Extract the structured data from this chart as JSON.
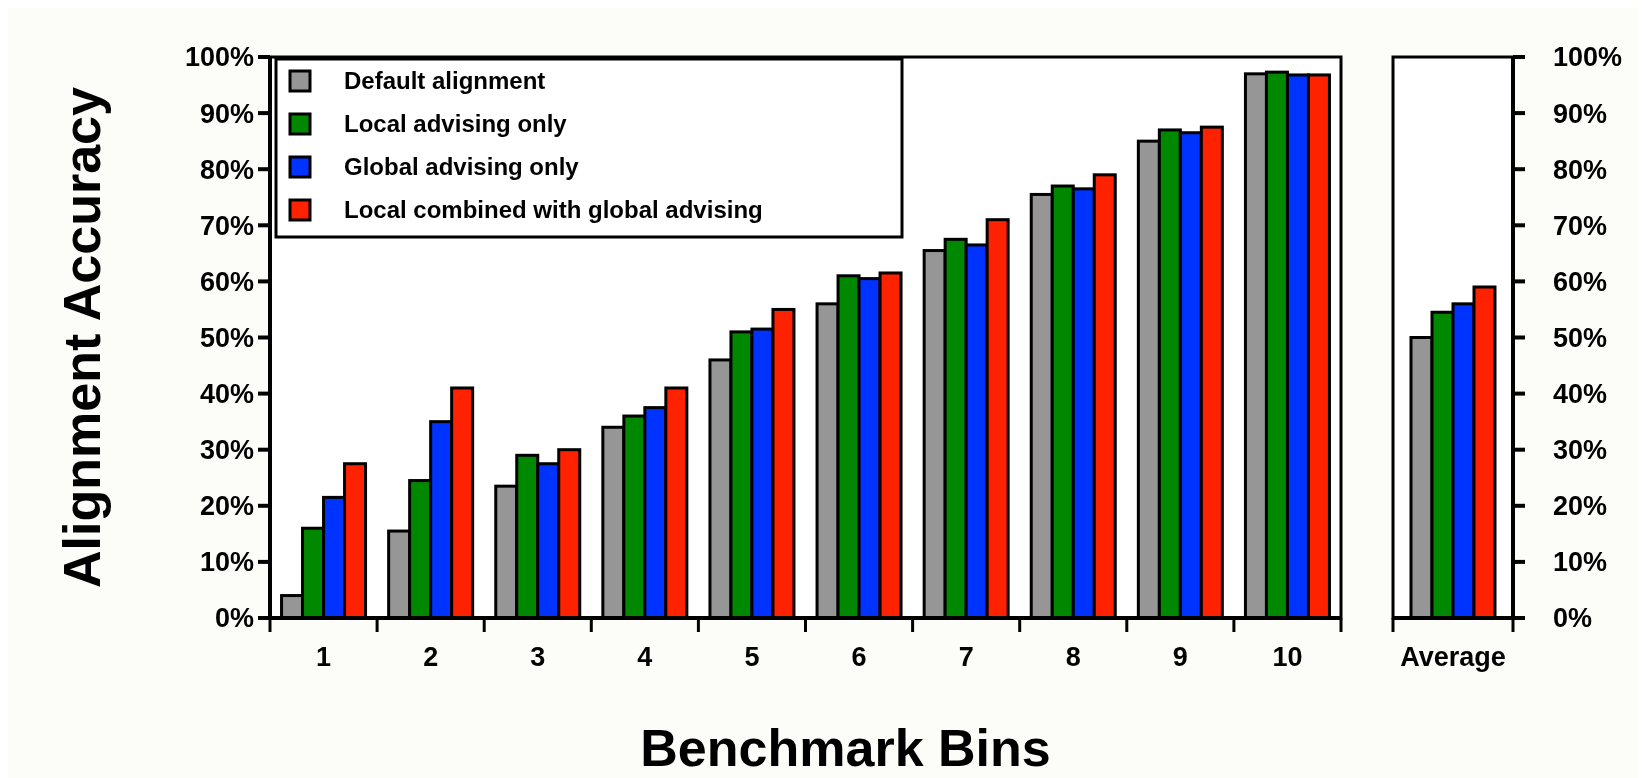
{
  "chart_data": [
    {
      "type": "bar",
      "xlabel": "Benchmark Bins",
      "ylabel": "Alignment Accuracy",
      "categories": [
        "1",
        "2",
        "3",
        "4",
        "5",
        "6",
        "7",
        "8",
        "9",
        "10"
      ],
      "series": [
        {
          "name": "Default alignment",
          "color": "#969696",
          "values": [
            4,
            15.5,
            23.5,
            34,
            46,
            56,
            65.5,
            75.5,
            85,
            97
          ]
        },
        {
          "name": "Local advising only",
          "color": "#008800",
          "values": [
            16,
            24.5,
            29,
            36,
            51,
            61,
            67.5,
            77,
            87,
            97.3
          ]
        },
        {
          "name": "Global advising only",
          "color": "#0033ff",
          "values": [
            21.5,
            35,
            27.5,
            37.5,
            51.5,
            60.5,
            66.5,
            76.5,
            86.5,
            96.8
          ]
        },
        {
          "name": "Local combined with global advising",
          "color": "#ff2200",
          "values": [
            27.5,
            41,
            30,
            41,
            55,
            61.5,
            71,
            79,
            87.5,
            96.8
          ]
        }
      ],
      "ylim": [
        0,
        100
      ],
      "yticks": [
        {
          "value": 0,
          "label": "0%"
        },
        {
          "value": 10,
          "label": "10%"
        },
        {
          "value": 20,
          "label": "20%"
        },
        {
          "value": 30,
          "label": "30%"
        },
        {
          "value": 40,
          "label": "40%"
        },
        {
          "value": 50,
          "label": "50%"
        },
        {
          "value": 60,
          "label": "60%"
        },
        {
          "value": 70,
          "label": "70%"
        },
        {
          "value": 80,
          "label": "80%"
        },
        {
          "value": 90,
          "label": "90%"
        },
        {
          "value": 100,
          "label": "100%"
        }
      ],
      "legend": "top left"
    },
    {
      "type": "bar",
      "categories": [
        "Average"
      ],
      "series": [
        {
          "color": "#969696",
          "values": [
            50
          ]
        },
        {
          "color": "#008800",
          "values": [
            54.5
          ]
        },
        {
          "color": "#0033ff",
          "values": [
            56
          ]
        },
        {
          "color": "#ff2200",
          "values": [
            59
          ]
        }
      ],
      "ylim": [
        0,
        100
      ],
      "yticks": [
        {
          "value": 0,
          "label": "0%"
        },
        {
          "value": 10,
          "label": "10%"
        },
        {
          "value": 20,
          "label": "20%"
        },
        {
          "value": 30,
          "label": "30%"
        },
        {
          "value": 40,
          "label": "40%"
        },
        {
          "value": 50,
          "label": "50%"
        },
        {
          "value": 60,
          "label": "60%"
        },
        {
          "value": 70,
          "label": "70%"
        },
        {
          "value": 80,
          "label": "80%"
        },
        {
          "value": 90,
          "label": "90%"
        },
        {
          "value": 100,
          "label": "100%"
        }
      ]
    }
  ]
}
